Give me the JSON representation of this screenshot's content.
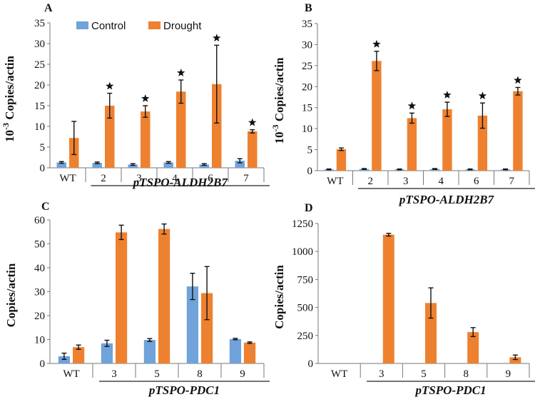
{
  "colors": {
    "control": "#6FA3D9",
    "drought": "#EE8130",
    "axis": "#777777",
    "star": "#111111"
  },
  "legend": {
    "control": "Control",
    "drought": "Drought"
  },
  "chart_data": [
    {
      "panel": "A",
      "type": "bar",
      "ylabel_prefix": "10",
      "ylabel_exp": "-3",
      "ylabel_suffix": " Copies/actin",
      "ylim": [
        0,
        35
      ],
      "yticks": [
        0,
        5,
        10,
        15,
        20,
        25,
        30,
        35
      ],
      "categories": [
        "WT",
        "2",
        "3",
        "4",
        "6",
        "7"
      ],
      "group_label": "pTSPO-ALDH2B7",
      "series": [
        {
          "name": "Control",
          "values": [
            1.3,
            1.2,
            0.8,
            1.3,
            0.8,
            1.7
          ],
          "errors": [
            0.2,
            0.2,
            0.2,
            0.2,
            0.2,
            0.5
          ]
        },
        {
          "name": "Drought",
          "values": [
            7.2,
            15.0,
            13.6,
            18.4,
            20.2,
            8.8
          ],
          "errors": [
            4.0,
            3.0,
            1.4,
            2.8,
            9.4,
            0.4
          ]
        }
      ],
      "significant": [
        false,
        true,
        true,
        true,
        true,
        true
      ]
    },
    {
      "panel": "B",
      "type": "bar",
      "ylabel_prefix": "10",
      "ylabel_exp": "-3",
      "ylabel_suffix": " Copies/actin",
      "ylim": [
        0,
        35
      ],
      "yticks": [
        0,
        5,
        10,
        15,
        20,
        25,
        30,
        35
      ],
      "categories": [
        "WT",
        "2",
        "3",
        "4",
        "6",
        "7"
      ],
      "group_label": "pTSPO-ALDH2B7",
      "series": [
        {
          "name": "Control",
          "values": [
            0.3,
            0.4,
            0.3,
            0.4,
            0.3,
            0.3
          ],
          "errors": [
            0.1,
            0.1,
            0.1,
            0.1,
            0.1,
            0.1
          ]
        },
        {
          "name": "Drought",
          "values": [
            5.1,
            26.1,
            12.5,
            14.6,
            13.1,
            18.9
          ],
          "errors": [
            0.3,
            2.3,
            1.2,
            1.7,
            3.0,
            0.9
          ]
        }
      ],
      "significant": [
        false,
        true,
        true,
        true,
        true,
        true
      ]
    },
    {
      "panel": "C",
      "type": "bar",
      "ylabel_prefix": "Copies/actin",
      "ylabel_exp": "",
      "ylabel_suffix": "",
      "ylim": [
        0,
        60
      ],
      "yticks": [
        0,
        10,
        20,
        30,
        40,
        50,
        60
      ],
      "categories": [
        "WT",
        "3",
        "5",
        "8",
        "9"
      ],
      "group_label": "pTSPO-PDC1",
      "series": [
        {
          "name": "Control",
          "values": [
            3.0,
            8.4,
            9.8,
            32.2,
            10.2
          ],
          "errors": [
            1.3,
            1.3,
            0.6,
            5.5,
            0.3
          ]
        },
        {
          "name": "Drought",
          "values": [
            6.8,
            54.8,
            56.2,
            29.4,
            8.7
          ],
          "errors": [
            0.9,
            3.0,
            2.1,
            11.1,
            0.3
          ]
        }
      ],
      "significant": [
        false,
        false,
        false,
        false,
        false
      ]
    },
    {
      "panel": "D",
      "type": "bar",
      "ylabel_prefix": "Copies/actin",
      "ylabel_exp": "",
      "ylabel_suffix": "",
      "ylim": [
        0,
        1250
      ],
      "yticks": [
        0,
        250,
        500,
        750,
        1000,
        1250
      ],
      "categories": [
        "WT",
        "3",
        "5",
        "8",
        "9"
      ],
      "group_label": "pTSPO-PDC1",
      "series": [
        {
          "name": "Control",
          "values": [
            0,
            0,
            0,
            0,
            0
          ],
          "errors": [
            0,
            0,
            0,
            0,
            0
          ]
        },
        {
          "name": "Drought",
          "values": [
            0,
            1150,
            540,
            280,
            55
          ],
          "errors": [
            0,
            12,
            135,
            40,
            20
          ]
        }
      ],
      "significant": [
        false,
        false,
        false,
        false,
        false
      ]
    }
  ]
}
